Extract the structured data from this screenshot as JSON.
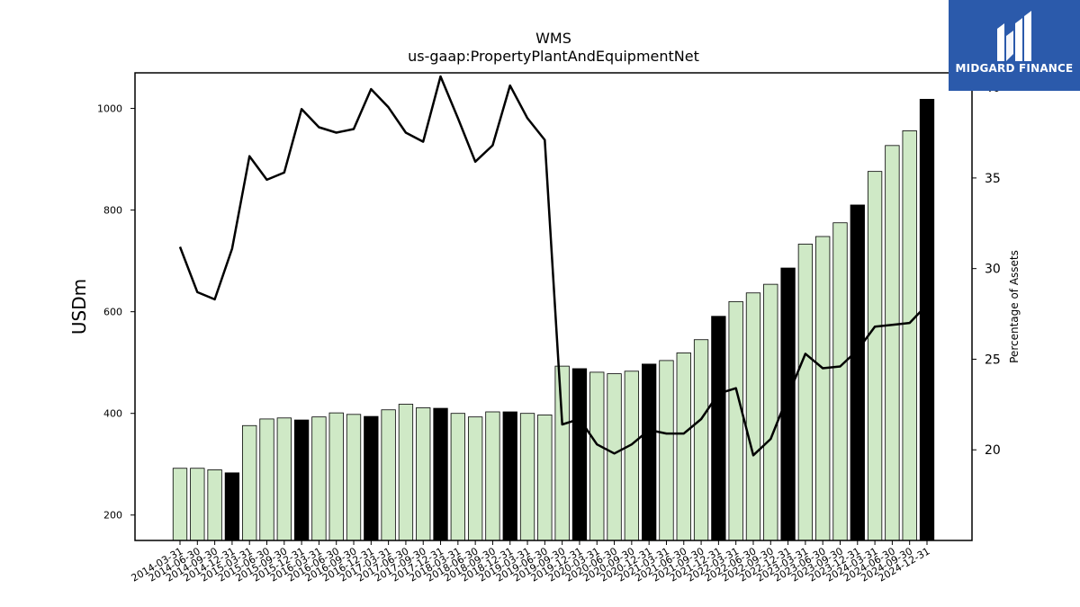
{
  "chart_data": {
    "type": "bar",
    "title": "WMS",
    "subtitle": "us-gaap:PropertyPlantAndEquipmentNet",
    "ylabel": "USDm",
    "y2label": "Percentage of Assets",
    "ylim": [
      150,
      1070
    ],
    "y2lim": [
      15,
      40.8
    ],
    "yticks": [
      200,
      400,
      600,
      800,
      1000
    ],
    "y2ticks": [
      20,
      25,
      30,
      35,
      40
    ],
    "categories": [
      "2014-03-31",
      "2014-06-30",
      "2014-09-30",
      "2014-12-31",
      "2015-03-31",
      "2015-06-30",
      "2015-09-30",
      "2015-12-31",
      "2016-03-31",
      "2016-06-30",
      "2016-09-30",
      "2016-12-31",
      "2017-03-31",
      "2017-06-30",
      "2017-09-30",
      "2017-12-31",
      "2018-03-31",
      "2018-06-30",
      "2018-09-30",
      "2018-12-31",
      "2019-03-31",
      "2019-06-30",
      "2019-09-30",
      "2019-12-31",
      "2020-03-31",
      "2020-06-30",
      "2020-09-30",
      "2020-12-31",
      "2021-03-31",
      "2021-06-30",
      "2021-09-30",
      "2021-12-31",
      "2022-03-31",
      "2022-06-30",
      "2022-09-30",
      "2022-12-31",
      "2023-03-31",
      "2023-06-30",
      "2023-09-30",
      "2023-12-31",
      "2024-03-31",
      "2024-06-30",
      "2024-09-30",
      "2024-12-31"
    ],
    "series": [
      {
        "values": [
          292,
          292,
          289,
          283,
          376,
          389,
          391,
          387,
          393,
          401,
          398,
          394,
          407,
          418,
          411,
          410,
          400,
          393,
          403,
          403,
          400,
          397,
          493,
          488,
          481,
          478,
          483,
          497,
          504,
          519,
          545,
          591,
          620,
          637,
          654,
          686,
          733,
          748,
          775,
          810,
          876,
          927,
          956,
          1018
        ]
      },
      {
        "type": "line",
        "axis": "right",
        "values": [
          31.2,
          28.7,
          28.3,
          31.1,
          36.2,
          34.9,
          35.3,
          38.8,
          37.8,
          37.5,
          37.7,
          39.9,
          38.9,
          37.5,
          37.0,
          40.6,
          38.3,
          35.9,
          36.8,
          40.1,
          38.3,
          37.1,
          21.4,
          21.7,
          20.3,
          19.8,
          20.3,
          21.1,
          20.9,
          20.9,
          21.7,
          23.1,
          23.4,
          19.7,
          20.6,
          23.0,
          25.3,
          24.5,
          24.6,
          25.5,
          26.8,
          26.9,
          27.0,
          28.0
        ]
      }
    ],
    "highlight_months": [
      "12"
    ],
    "colors": {
      "bar": "#cfe9c6",
      "bar_highlight": "#000000",
      "line": "#000000",
      "logo_bg": "#2b5aab"
    },
    "legend": "none",
    "grid": false
  },
  "logo": {
    "text": "MIDGARD FINANCE"
  }
}
